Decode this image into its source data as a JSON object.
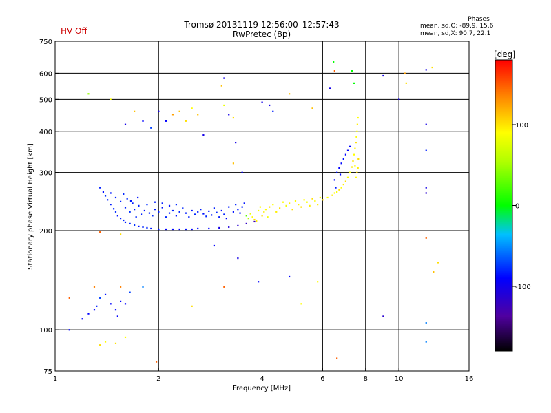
{
  "header": {
    "title_line1": "Tromsø 20131119 12:56:00–12:57:43",
    "title_line2": "RwPretec (8p)",
    "status": "HV Off"
  },
  "phases_box": {
    "title": "Phases",
    "line1": "mean, sd,O: -89.9, 15.6",
    "line2": "mean, sd,X:  90.7, 22.1"
  },
  "colorbar": {
    "label": "[deg]",
    "ticks": [
      {
        "value": 100,
        "label": "100"
      },
      {
        "value": 0,
        "label": "0"
      },
      {
        "value": -100,
        "label": "-100"
      }
    ],
    "range": [
      -180,
      180
    ]
  },
  "chart_data": {
    "type": "scatter",
    "title": "Tromsø 20131119 12:56:00–12:57:43",
    "subtitle": "RwPretec (8p)",
    "xlabel": "Frequency [MHz]",
    "ylabel": "Stationary phase Virtual Height [km]",
    "x_scale": "log2",
    "y_scale": "log",
    "xlim": [
      1,
      16
    ],
    "ylim": [
      75,
      750
    ],
    "x_ticks": [
      1,
      2,
      4,
      6,
      8,
      10,
      16
    ],
    "y_ticks": [
      75,
      100,
      200,
      300,
      400,
      500,
      600,
      750
    ],
    "grid": true,
    "grid_x": [
      2,
      4,
      6,
      8,
      10
    ],
    "grid_y": [
      100,
      200,
      300,
      400,
      500,
      600
    ],
    "color_key": "phase_deg",
    "series": [
      {
        "points": [
          [
            1.35,
            270,
            -90
          ],
          [
            1.38,
            262,
            -95
          ],
          [
            1.4,
            255,
            -85
          ],
          [
            1.42,
            248,
            -88
          ],
          [
            1.45,
            240,
            -92
          ],
          [
            1.48,
            233,
            -90
          ],
          [
            1.5,
            228,
            -86
          ],
          [
            1.52,
            222,
            -94
          ],
          [
            1.55,
            218,
            -90
          ],
          [
            1.58,
            215,
            -88
          ],
          [
            1.6,
            212,
            -92
          ],
          [
            1.65,
            210,
            -90
          ],
          [
            1.7,
            208,
            -86
          ],
          [
            1.75,
            206,
            -95
          ],
          [
            1.8,
            205,
            -90
          ],
          [
            1.85,
            204,
            -88
          ],
          [
            1.9,
            203,
            -92
          ],
          [
            2.0,
            202,
            -95
          ],
          [
            2.1,
            202,
            -100
          ],
          [
            2.2,
            202,
            -98
          ],
          [
            2.3,
            202,
            -100
          ],
          [
            2.4,
            202,
            -96
          ],
          [
            2.5,
            202,
            -100
          ],
          [
            2.6,
            203,
            -98
          ],
          [
            2.8,
            203,
            -100
          ],
          [
            3.0,
            204,
            -110
          ],
          [
            3.2,
            205,
            -115
          ],
          [
            3.4,
            207,
            -120
          ],
          [
            3.6,
            210,
            -125
          ],
          [
            3.8,
            213,
            -130
          ],
          [
            1.6,
            235,
            -90
          ],
          [
            1.65,
            228,
            -85
          ],
          [
            1.7,
            232,
            -92
          ],
          [
            1.72,
            220,
            -88
          ],
          [
            1.78,
            224,
            -90
          ],
          [
            1.82,
            230,
            -95
          ],
          [
            1.88,
            226,
            -90
          ],
          [
            1.92,
            222,
            -87
          ],
          [
            1.95,
            232,
            -92
          ],
          [
            2.0,
            228,
            -90
          ],
          [
            2.05,
            235,
            -94
          ],
          [
            2.1,
            220,
            -88
          ],
          [
            2.15,
            226,
            -92
          ],
          [
            2.2,
            230,
            -90
          ],
          [
            2.25,
            222,
            -95
          ],
          [
            2.3,
            228,
            -90
          ],
          [
            2.35,
            234,
            -88
          ],
          [
            2.4,
            226,
            -92
          ],
          [
            2.45,
            220,
            -90
          ],
          [
            2.5,
            230,
            -94
          ],
          [
            2.55,
            224,
            -88
          ],
          [
            2.6,
            228,
            -92
          ],
          [
            2.65,
            232,
            -90
          ],
          [
            2.7,
            225,
            -95
          ],
          [
            2.75,
            221,
            -88
          ],
          [
            2.8,
            229,
            -90
          ],
          [
            2.85,
            223,
            -92
          ],
          [
            2.9,
            234,
            -90
          ],
          [
            2.95,
            227,
            -88
          ],
          [
            3.0,
            220,
            -92
          ],
          [
            3.05,
            230,
            -95
          ],
          [
            3.1,
            224,
            -90
          ],
          [
            3.15,
            218,
            -100
          ],
          [
            3.2,
            236,
            -92
          ],
          [
            3.3,
            228,
            -95
          ],
          [
            3.35,
            240,
            -90
          ],
          [
            3.4,
            232,
            -92
          ],
          [
            3.45,
            226,
            -95
          ],
          [
            3.5,
            236,
            -90
          ],
          [
            3.55,
            242,
            -94
          ],
          [
            1.55,
            245,
            -90
          ],
          [
            1.62,
            250,
            -88
          ],
          [
            1.68,
            242,
            -92
          ],
          [
            1.75,
            238,
            -90
          ],
          [
            1.85,
            240,
            -86
          ],
          [
            1.95,
            244,
            -92
          ],
          [
            2.05,
            242,
            -90
          ],
          [
            2.15,
            238,
            -94
          ],
          [
            2.25,
            240,
            -88
          ],
          [
            1.45,
            260,
            -92
          ],
          [
            1.5,
            252,
            -90
          ],
          [
            1.58,
            258,
            -88
          ],
          [
            1.66,
            246,
            -92
          ],
          [
            1.74,
            252,
            -95
          ],
          [
            3.6,
            222,
            30
          ],
          [
            3.65,
            218,
            60
          ],
          [
            3.7,
            225,
            90
          ],
          [
            3.75,
            220,
            100
          ],
          [
            3.8,
            216,
            110
          ],
          [
            3.85,
            214,
            105
          ],
          [
            3.9,
            230,
            95
          ],
          [
            3.95,
            236,
            100
          ],
          [
            4.0,
            222,
            110
          ],
          [
            4.05,
            228,
            105
          ],
          [
            4.1,
            232,
            100
          ],
          [
            4.15,
            220,
            95
          ],
          [
            4.2,
            236,
            110
          ],
          [
            4.3,
            240,
            100
          ],
          [
            4.4,
            228,
            105
          ],
          [
            4.5,
            234,
            110
          ],
          [
            4.6,
            244,
            100
          ],
          [
            4.7,
            238,
            95
          ],
          [
            4.8,
            242,
            105
          ],
          [
            4.9,
            232,
            110
          ],
          [
            5.0,
            246,
            100
          ],
          [
            5.1,
            240,
            105
          ],
          [
            5.2,
            236,
            110
          ],
          [
            5.3,
            248,
            100
          ],
          [
            5.4,
            244,
            95
          ],
          [
            5.5,
            238,
            105
          ],
          [
            5.6,
            250,
            110
          ],
          [
            5.7,
            246,
            100
          ],
          [
            5.8,
            240,
            105
          ],
          [
            5.9,
            252,
            95
          ],
          [
            6.0,
            248,
            110
          ],
          [
            6.2,
            252,
            100
          ],
          [
            6.4,
            256,
            105
          ],
          [
            6.5,
            260,
            100
          ],
          [
            6.6,
            262,
            95
          ],
          [
            6.7,
            266,
            110
          ],
          [
            6.8,
            270,
            100
          ],
          [
            6.9,
            276,
            105
          ],
          [
            7.0,
            282,
            110
          ],
          [
            7.1,
            290,
            100
          ],
          [
            7.2,
            300,
            95
          ],
          [
            7.3,
            312,
            105
          ],
          [
            7.35,
            325,
            110
          ],
          [
            7.4,
            340,
            100
          ],
          [
            7.45,
            355,
            105
          ],
          [
            7.5,
            370,
            110
          ],
          [
            7.52,
            385,
            100
          ],
          [
            7.55,
            400,
            95
          ],
          [
            7.57,
            420,
            105
          ],
          [
            7.6,
            440,
            100
          ],
          [
            7.55,
            300,
            110
          ],
          [
            7.5,
            290,
            100
          ],
          [
            7.6,
            310,
            105
          ],
          [
            7.62,
            330,
            110
          ],
          [
            7.45,
            315,
            100
          ],
          [
            6.5,
            285,
            -100
          ],
          [
            6.6,
            300,
            -95
          ],
          [
            6.7,
            310,
            -100
          ],
          [
            6.8,
            320,
            -98
          ],
          [
            6.9,
            330,
            -95
          ],
          [
            7.0,
            340,
            -100
          ],
          [
            7.1,
            350,
            -102
          ],
          [
            7.2,
            360,
            -100
          ],
          [
            6.55,
            270,
            -92
          ],
          [
            6.75,
            296,
            -98
          ],
          [
            6.5,
            610,
            150
          ],
          [
            6.45,
            650,
            0
          ],
          [
            7.3,
            610,
            0
          ],
          [
            7.4,
            560,
            0
          ],
          [
            10.5,
            560,
            110
          ],
          [
            10.4,
            600,
            130
          ],
          [
            12.0,
            615,
            -110
          ],
          [
            12.5,
            625,
            110
          ],
          [
            9.0,
            590,
            -110
          ],
          [
            10.0,
            500,
            -110
          ],
          [
            12.0,
            420,
            -110
          ],
          [
            12.0,
            350,
            -90
          ],
          [
            12.0,
            260,
            -120
          ],
          [
            12.0,
            270,
            -110
          ],
          [
            12.0,
            190,
            150
          ],
          [
            12.6,
            150,
            120
          ],
          [
            13.0,
            160,
            110
          ],
          [
            9.0,
            110,
            -120
          ],
          [
            12.0,
            105,
            -60
          ],
          [
            12.0,
            92,
            -60
          ],
          [
            6.6,
            82,
            150
          ],
          [
            1.1,
            100,
            -100
          ],
          [
            1.2,
            108,
            -100
          ],
          [
            1.25,
            112,
            -100
          ],
          [
            1.3,
            115,
            -100
          ],
          [
            1.32,
            118,
            -90
          ],
          [
            1.35,
            125,
            -80
          ],
          [
            1.4,
            128,
            -95
          ],
          [
            1.45,
            120,
            -100
          ],
          [
            1.5,
            115,
            -100
          ],
          [
            1.52,
            110,
            -100
          ],
          [
            1.55,
            122,
            -100
          ],
          [
            1.6,
            120,
            -100
          ],
          [
            1.65,
            130,
            -80
          ],
          [
            1.8,
            135,
            -60
          ],
          [
            1.1,
            125,
            150
          ],
          [
            1.3,
            135,
            140
          ],
          [
            1.55,
            135,
            140
          ],
          [
            1.35,
            90,
            110
          ],
          [
            1.4,
            92,
            100
          ],
          [
            1.5,
            91,
            110
          ],
          [
            1.6,
            95,
            100
          ],
          [
            1.35,
            198,
            150
          ],
          [
            1.55,
            195,
            110
          ],
          [
            1.25,
            520,
            50
          ],
          [
            1.45,
            500,
            100
          ],
          [
            1.6,
            420,
            -110
          ],
          [
            1.7,
            460,
            120
          ],
          [
            1.8,
            430,
            -100
          ],
          [
            1.9,
            410,
            -80
          ],
          [
            2.0,
            460,
            -110
          ],
          [
            2.1,
            430,
            -100
          ],
          [
            2.2,
            450,
            130
          ],
          [
            2.3,
            460,
            120
          ],
          [
            2.4,
            430,
            110
          ],
          [
            2.5,
            470,
            100
          ],
          [
            2.6,
            450,
            120
          ],
          [
            3.1,
            580,
            -110
          ],
          [
            3.05,
            550,
            120
          ],
          [
            3.1,
            480,
            90
          ],
          [
            3.2,
            450,
            -110
          ],
          [
            3.3,
            440,
            110
          ],
          [
            3.35,
            370,
            -110
          ],
          [
            3.5,
            300,
            -100
          ],
          [
            3.3,
            320,
            120
          ],
          [
            3.4,
            165,
            -110
          ],
          [
            3.1,
            135,
            150
          ],
          [
            3.9,
            140,
            -100
          ],
          [
            4.0,
            490,
            -110
          ],
          [
            4.2,
            480,
            -110
          ],
          [
            4.3,
            460,
            -90
          ],
          [
            4.8,
            520,
            120
          ],
          [
            4.8,
            145,
            -100
          ],
          [
            5.2,
            120,
            100
          ],
          [
            5.6,
            470,
            120
          ],
          [
            5.8,
            140,
            100
          ],
          [
            6.3,
            540,
            -110
          ],
          [
            2.7,
            390,
            -110
          ],
          [
            2.9,
            180,
            -100
          ],
          [
            2.5,
            118,
            110
          ],
          [
            1.97,
            80,
            150
          ]
        ]
      }
    ]
  }
}
